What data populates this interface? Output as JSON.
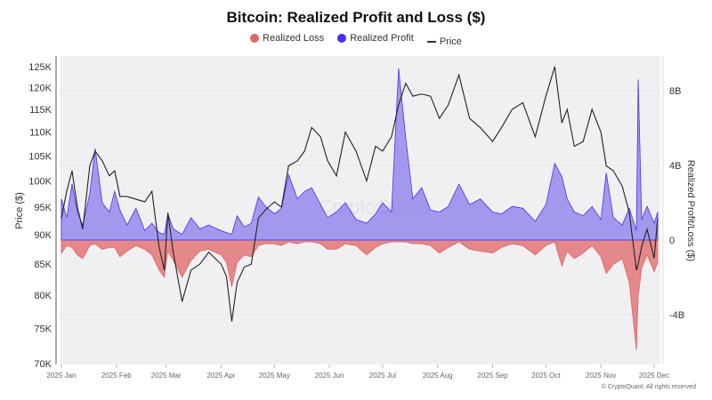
{
  "chart_data": {
    "type": "area",
    "title": "Bitcoin: Realized Profit and Loss ($)",
    "ylabel_left": "Price ($)",
    "ylabel_right": "Realized Profit/Loss ($)",
    "left_axis_scale": "log",
    "left_ylim": [
      70000,
      127000
    ],
    "right_ylim": [
      -6.6,
      10
    ],
    "left_ticks": [
      "125K",
      "120K",
      "115K",
      "110K",
      "105K",
      "100K",
      "95K",
      "90K",
      "85K",
      "80K",
      "75K",
      "70K"
    ],
    "left_tick_values": [
      125000,
      120000,
      115000,
      110000,
      105000,
      100000,
      95000,
      90000,
      85000,
      80000,
      75000,
      70000
    ],
    "right_ticks": [
      "8B",
      "4B",
      "0",
      "-4B"
    ],
    "right_tick_values": [
      8,
      4,
      0,
      -4
    ],
    "x_ticks": [
      "2025 Jan",
      "2025 Feb",
      "2025 Mar",
      "2025 Apr",
      "2025 May",
      "2025 Jun",
      "2025 Jul",
      "2025 Aug",
      "2025 Sep",
      "2025 Oct",
      "2025 Nov",
      "2025 Dec"
    ],
    "x_tick_dates": [
      "2025-01-01",
      "2025-02-01",
      "2025-03-01",
      "2025-04-01",
      "2025-05-01",
      "2025-06-01",
      "2025-07-01",
      "2025-08-01",
      "2025-09-01",
      "2025-10-01",
      "2025-11-01",
      "2025-12-01"
    ],
    "legend_position": "top",
    "grid": true,
    "series": [
      {
        "name": "Realized Loss",
        "color": "#e06666",
        "unit": "B USD"
      },
      {
        "name": "Realized Profit",
        "color": "#4b2ff0",
        "unit": "B USD"
      },
      {
        "name": "Price",
        "color": "#222222",
        "unit": "USD"
      }
    ],
    "dates": [
      "2025-01-01",
      "2025-01-04",
      "2025-01-07",
      "2025-01-10",
      "2025-01-13",
      "2025-01-17",
      "2025-01-20",
      "2025-01-24",
      "2025-01-28",
      "2025-01-31",
      "2025-02-03",
      "2025-02-07",
      "2025-02-12",
      "2025-02-17",
      "2025-02-21",
      "2025-02-25",
      "2025-02-28",
      "2025-03-02",
      "2025-03-05",
      "2025-03-10",
      "2025-03-15",
      "2025-03-20",
      "2025-03-25",
      "2025-04-01",
      "2025-04-04",
      "2025-04-07",
      "2025-04-10",
      "2025-04-14",
      "2025-04-18",
      "2025-04-22",
      "2025-04-26",
      "2025-05-01",
      "2025-05-05",
      "2025-05-09",
      "2025-05-14",
      "2025-05-18",
      "2025-05-22",
      "2025-05-27",
      "2025-05-31",
      "2025-06-05",
      "2025-06-10",
      "2025-06-16",
      "2025-06-22",
      "2025-06-27",
      "2025-07-01",
      "2025-07-06",
      "2025-07-10",
      "2025-07-14",
      "2025-07-18",
      "2025-07-23",
      "2025-07-28",
      "2025-08-02",
      "2025-08-07",
      "2025-08-13",
      "2025-08-19",
      "2025-08-25",
      "2025-09-01",
      "2025-09-06",
      "2025-09-12",
      "2025-09-18",
      "2025-09-25",
      "2025-10-01",
      "2025-10-06",
      "2025-10-10",
      "2025-10-13",
      "2025-10-17",
      "2025-10-22",
      "2025-10-27",
      "2025-11-01",
      "2025-11-04",
      "2025-11-08",
      "2025-11-13",
      "2025-11-17",
      "2025-11-21",
      "2025-11-22",
      "2025-11-24",
      "2025-11-27",
      "2025-12-01",
      "2025-12-03"
    ],
    "price": [
      93000,
      98000,
      102000,
      95000,
      91000,
      103000,
      106000,
      104000,
      101000,
      102000,
      97000,
      97000,
      96500,
      96000,
      98000,
      88000,
      84000,
      94000,
      87000,
      79000,
      84000,
      85000,
      87000,
      85000,
      83000,
      76000,
      82000,
      84500,
      85000,
      93000,
      94500,
      96000,
      95000,
      103000,
      104000,
      106000,
      111000,
      109000,
      104000,
      101000,
      110000,
      106000,
      100000,
      107000,
      106000,
      109000,
      116000,
      121000,
      118000,
      118500,
      118000,
      113000,
      116000,
      123000,
      113000,
      111000,
      108000,
      111000,
      115000,
      116500,
      109000,
      118000,
      125000,
      112000,
      115000,
      107000,
      108000,
      115000,
      110000,
      103000,
      102000,
      99000,
      94000,
      84000,
      85000,
      88000,
      91000,
      86000,
      93000
    ],
    "profit": [
      2.2,
      1.2,
      3.0,
      1.5,
      0.8,
      2.5,
      4.9,
      2.0,
      1.5,
      2.6,
      1.6,
      0.8,
      1.7,
      0.5,
      0.9,
      0.4,
      0.3,
      1.4,
      0.6,
      0.3,
      1.2,
      0.6,
      0.8,
      0.5,
      0.4,
      0.3,
      1.3,
      0.7,
      0.9,
      2.3,
      1.8,
      1.4,
      1.7,
      3.5,
      2.2,
      2.6,
      2.8,
      1.9,
      1.2,
      1.5,
      2.0,
      1.1,
      0.9,
      1.4,
      2.0,
      1.5,
      9.2,
      5.5,
      2.2,
      2.8,
      1.6,
      1.5,
      1.8,
      3.0,
      1.9,
      2.2,
      1.5,
      1.4,
      1.8,
      1.7,
      1.0,
      1.9,
      4.1,
      3.4,
      2.2,
      1.5,
      1.3,
      1.8,
      1.1,
      3.6,
      1.2,
      0.8,
      1.7,
      0.5,
      8.6,
      1.1,
      1.8,
      0.9,
      1.5
    ],
    "loss": [
      -0.7,
      -0.3,
      -0.4,
      -0.8,
      -1.0,
      -0.3,
      -0.2,
      -0.5,
      -0.4,
      -0.4,
      -0.9,
      -0.6,
      -0.3,
      -0.5,
      -0.8,
      -1.6,
      -2.0,
      -0.6,
      -1.1,
      -2.0,
      -1.1,
      -0.6,
      -0.5,
      -0.8,
      -1.2,
      -2.5,
      -1.2,
      -0.8,
      -0.9,
      -0.3,
      -0.2,
      -0.2,
      -0.3,
      -0.1,
      -0.2,
      -0.1,
      -0.1,
      -0.2,
      -0.5,
      -0.5,
      -0.2,
      -0.3,
      -0.8,
      -0.4,
      -0.2,
      -0.1,
      -0.1,
      -0.1,
      -0.2,
      -0.2,
      -0.3,
      -0.7,
      -0.4,
      -0.1,
      -0.5,
      -0.6,
      -0.7,
      -0.4,
      -0.2,
      -0.3,
      -0.8,
      -0.3,
      -0.1,
      -1.4,
      -0.6,
      -1.0,
      -0.7,
      -0.3,
      -0.9,
      -1.8,
      -1.3,
      -1.0,
      -2.3,
      -5.9,
      -3.0,
      -1.5,
      -0.8,
      -1.7,
      -1.2
    ]
  },
  "footer": {
    "copyright": "© CryptoQuant. All rights reserved"
  },
  "watermark": "CryptoQuant"
}
